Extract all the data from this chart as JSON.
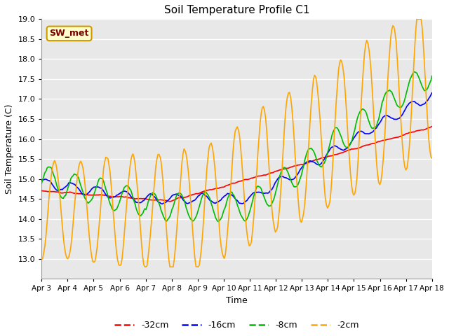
{
  "title": "Soil Temperature Profile C1",
  "xlabel": "Time",
  "ylabel": "Soil Temperature (C)",
  "ylim": [
    12.5,
    19.0
  ],
  "yticks": [
    13.0,
    13.5,
    14.0,
    14.5,
    15.0,
    15.5,
    16.0,
    16.5,
    17.0,
    17.5,
    18.0,
    18.5,
    19.0
  ],
  "bg_color": "#e8e8e8",
  "grid_color": "#ffffff",
  "annotation_text": "SW_met",
  "annotation_bg": "#ffffcc",
  "annotation_border": "#cc9900",
  "annotation_text_color": "#7a0000",
  "line_colors": {
    "-32cm": "#ff0000",
    "-16cm": "#0000ff",
    "-8cm": "#00bb00",
    "-2cm": "#ffa500"
  },
  "line_labels": [
    "-32cm",
    "-16cm",
    "-8cm",
    "-2cm"
  ],
  "dates": [
    "Apr 3",
    "Apr 4",
    "Apr 5",
    "Apr 6",
    "Apr 7",
    "Apr 8",
    "Apr 9",
    "Apr 10",
    "Apr 11",
    "Apr 12",
    "Apr 13",
    "Apr 14",
    "Apr 15",
    "Apr 16",
    "Apr 17",
    "Apr 18"
  ]
}
